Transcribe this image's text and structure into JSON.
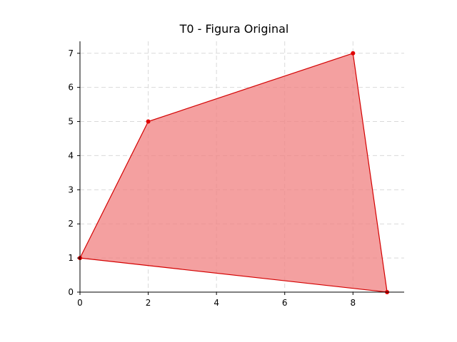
{
  "chart_data": {
    "type": "area",
    "title": "T0 - Figura Original",
    "xlabel": "",
    "ylabel": "",
    "xlim": [
      0,
      9.5
    ],
    "ylim": [
      0,
      7.35
    ],
    "xticks": [
      "0",
      "2",
      "4",
      "6",
      "8"
    ],
    "yticks": [
      "0",
      "1",
      "2",
      "3",
      "4",
      "5",
      "6",
      "7"
    ],
    "grid": true,
    "legend": "none",
    "polygon": [
      {
        "x": 0,
        "y": 1
      },
      {
        "x": 2,
        "y": 5
      },
      {
        "x": 8,
        "y": 7
      },
      {
        "x": 9,
        "y": 0
      }
    ],
    "colors": {
      "fill": "#f08080",
      "edge": "#d40000",
      "marker": "#e00000",
      "grid": "#d9d9d9"
    }
  }
}
